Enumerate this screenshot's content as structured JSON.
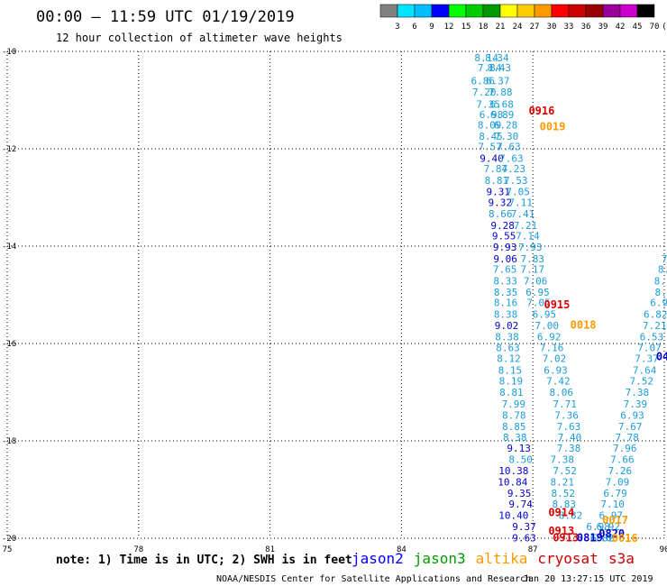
{
  "chart_data": {
    "type": "scatter",
    "title": "00:00 – 11:59 UTC 01/19/2019",
    "subtitle": "12 hour collection of altimeter wave heights",
    "x_range": [
      75,
      90
    ],
    "y_range": [
      -20,
      -10
    ],
    "x_ticks": [
      "75",
      "78",
      "81",
      "84",
      "87",
      "90"
    ],
    "y_ticks": [
      "-10",
      "-12",
      "-14",
      "-16",
      "-18",
      "-20"
    ],
    "grid": true,
    "colorbar": {
      "labels": [
        "3",
        "6",
        "9",
        "12",
        "15",
        "18",
        "21",
        "24",
        "27",
        "30",
        "33",
        "36",
        "39",
        "42",
        "45",
        "70",
        "(ft)"
      ],
      "colors": [
        "#808080",
        "#00e5ff",
        "#00bfff",
        "#0000ff",
        "#00ff00",
        "#00cc00",
        "#009900",
        "#ffff00",
        "#ffcc00",
        "#ff9900",
        "#ff0000",
        "#cc0000",
        "#990000",
        "#990099",
        "#cc00cc",
        "#000000"
      ]
    },
    "series": [
      {
        "name": "track-west",
        "points": [
          {
            "x": 85.94,
            "y": -10.13,
            "v": "8.14"
          },
          {
            "x": 86.01,
            "y": -10.33,
            "v": "7.84"
          },
          {
            "x": 85.86,
            "y": -10.6,
            "v": "6.86"
          },
          {
            "x": 85.89,
            "y": -10.83,
            "v": "7.20"
          },
          {
            "x": 85.98,
            "y": -11.08,
            "v": "7.35"
          },
          {
            "x": 86.05,
            "y": -11.3,
            "v": "6.98"
          },
          {
            "x": 86.01,
            "y": -11.51,
            "v": "8.09"
          },
          {
            "x": 86.04,
            "y": -11.74,
            "v": "8.45"
          },
          {
            "x": 86.02,
            "y": -11.95,
            "v": "7.57"
          },
          {
            "x": 86.06,
            "y": -12.19,
            "v": "9.40"
          },
          {
            "x": 86.15,
            "y": -12.41,
            "v": "7.84"
          },
          {
            "x": 86.17,
            "y": -12.65,
            "v": "8.81"
          },
          {
            "x": 86.21,
            "y": -12.88,
            "v": "9.31"
          },
          {
            "x": 86.25,
            "y": -13.1,
            "v": "9.32"
          },
          {
            "x": 86.26,
            "y": -13.33,
            "v": "8.66"
          },
          {
            "x": 86.31,
            "y": -13.57,
            "v": "9.28"
          },
          {
            "x": 86.34,
            "y": -13.79,
            "v": "9.55"
          },
          {
            "x": 86.36,
            "y": -14.02,
            "v": "9.93"
          },
          {
            "x": 86.37,
            "y": -14.26,
            "v": "9.06"
          },
          {
            "x": 86.36,
            "y": -14.47,
            "v": "7.65"
          },
          {
            "x": 86.37,
            "y": -14.71,
            "v": "8.33"
          },
          {
            "x": 86.38,
            "y": -14.94,
            "v": "8.35"
          },
          {
            "x": 86.38,
            "y": -15.16,
            "v": "8.16"
          },
          {
            "x": 86.38,
            "y": -15.4,
            "v": "8.38"
          },
          {
            "x": 86.4,
            "y": -15.63,
            "v": "9.02"
          },
          {
            "x": 86.41,
            "y": -15.86,
            "v": "8.38"
          },
          {
            "x": 86.43,
            "y": -16.08,
            "v": "8.63"
          },
          {
            "x": 86.45,
            "y": -16.31,
            "v": "8.12"
          },
          {
            "x": 86.48,
            "y": -16.55,
            "v": "8.15"
          },
          {
            "x": 86.5,
            "y": -16.77,
            "v": "8.19"
          },
          {
            "x": 86.51,
            "y": -17.0,
            "v": "8.81"
          },
          {
            "x": 86.56,
            "y": -17.24,
            "v": "7.99"
          },
          {
            "x": 86.57,
            "y": -17.47,
            "v": "8.78"
          },
          {
            "x": 86.57,
            "y": -17.7,
            "v": "8.85"
          },
          {
            "x": 86.59,
            "y": -17.93,
            "v": "8.38"
          },
          {
            "x": 86.68,
            "y": -18.15,
            "v": "9.13"
          },
          {
            "x": 86.72,
            "y": -18.38,
            "v": "8.50"
          },
          {
            "x": 86.56,
            "y": -18.61,
            "v": "10.38"
          },
          {
            "x": 86.54,
            "y": -18.84,
            "v": "10.84"
          },
          {
            "x": 86.69,
            "y": -19.07,
            "v": "9.35"
          },
          {
            "x": 86.72,
            "y": -19.3,
            "v": "9.74"
          },
          {
            "x": 86.56,
            "y": -19.53,
            "v": "10.40"
          },
          {
            "x": 86.8,
            "y": -19.76,
            "v": "9.37"
          },
          {
            "x": 86.8,
            "y": -19.99,
            "v": "9.63"
          }
        ]
      },
      {
        "name": "track-middle",
        "points": [
          {
            "x": 86.18,
            "y": -10.13,
            "v": "8.34"
          },
          {
            "x": 86.23,
            "y": -10.33,
            "v": "8.43"
          },
          {
            "x": 86.2,
            "y": -10.6,
            "v": "6.37"
          },
          {
            "x": 86.26,
            "y": -10.83,
            "v": "7.88"
          },
          {
            "x": 86.29,
            "y": -11.08,
            "v": "6.68"
          },
          {
            "x": 86.3,
            "y": -11.3,
            "v": "6.89"
          },
          {
            "x": 86.38,
            "y": -11.51,
            "v": "6.28"
          },
          {
            "x": 86.4,
            "y": -11.74,
            "v": "7.30"
          },
          {
            "x": 86.45,
            "y": -11.95,
            "v": "7.63"
          },
          {
            "x": 86.51,
            "y": -12.19,
            "v": "7.63"
          },
          {
            "x": 86.56,
            "y": -12.41,
            "v": "7.23"
          },
          {
            "x": 86.61,
            "y": -12.65,
            "v": "7.53"
          },
          {
            "x": 86.66,
            "y": -12.88,
            "v": "7.05"
          },
          {
            "x": 86.72,
            "y": -13.1,
            "v": "7.11"
          },
          {
            "x": 86.77,
            "y": -13.33,
            "v": "7.41"
          },
          {
            "x": 86.83,
            "y": -13.57,
            "v": "7.21"
          },
          {
            "x": 86.88,
            "y": -13.79,
            "v": "7.14"
          },
          {
            "x": 86.94,
            "y": -14.02,
            "v": "7.93"
          },
          {
            "x": 86.99,
            "y": -14.26,
            "v": "7.83"
          },
          {
            "x": 86.99,
            "y": -14.47,
            "v": "7.17"
          },
          {
            "x": 87.06,
            "y": -14.71,
            "v": "7.06"
          },
          {
            "x": 87.11,
            "y": -14.94,
            "v": "6.95"
          },
          {
            "x": 87.13,
            "y": -15.16,
            "v": "7.05"
          },
          {
            "x": 87.26,
            "y": -15.4,
            "v": "6.95"
          },
          {
            "x": 87.32,
            "y": -15.63,
            "v": "7.00"
          },
          {
            "x": 87.37,
            "y": -15.86,
            "v": "6.92"
          },
          {
            "x": 87.43,
            "y": -16.08,
            "v": "7.16"
          },
          {
            "x": 87.49,
            "y": -16.31,
            "v": "7.02"
          },
          {
            "x": 87.52,
            "y": -16.55,
            "v": "6.93"
          },
          {
            "x": 87.58,
            "y": -16.77,
            "v": "7.42"
          },
          {
            "x": 87.65,
            "y": -17.0,
            "v": "8.06"
          },
          {
            "x": 87.73,
            "y": -17.24,
            "v": "7.71"
          },
          {
            "x": 87.77,
            "y": -17.47,
            "v": "7.36"
          },
          {
            "x": 87.82,
            "y": -17.7,
            "v": "7.63"
          },
          {
            "x": 87.84,
            "y": -17.93,
            "v": "7.40"
          },
          {
            "x": 87.82,
            "y": -18.15,
            "v": "7.38"
          },
          {
            "x": 87.67,
            "y": -18.38,
            "v": "7.38"
          },
          {
            "x": 87.73,
            "y": -18.61,
            "v": "7.52"
          },
          {
            "x": 87.67,
            "y": -18.84,
            "v": "8.21"
          },
          {
            "x": 87.69,
            "y": -19.07,
            "v": "8.52"
          },
          {
            "x": 87.71,
            "y": -19.3,
            "v": "8.83"
          },
          {
            "x": 87.86,
            "y": -19.53,
            "v": "8.82"
          }
        ]
      },
      {
        "name": "track-east",
        "points": [
          {
            "x": 90.0,
            "y": -14.26,
            "v": "7"
          },
          {
            "x": 89.99,
            "y": -14.47,
            "v": "8."
          },
          {
            "x": 89.97,
            "y": -14.71,
            "v": "8.1"
          },
          {
            "x": 89.92,
            "y": -14.94,
            "v": "8."
          },
          {
            "x": 89.88,
            "y": -15.16,
            "v": "6.9"
          },
          {
            "x": 89.8,
            "y": -15.4,
            "v": "6.82"
          },
          {
            "x": 89.78,
            "y": -15.63,
            "v": "7.21"
          },
          {
            "x": 89.71,
            "y": -15.86,
            "v": "6.53"
          },
          {
            "x": 89.66,
            "y": -16.08,
            "v": "7.07"
          },
          {
            "x": 89.6,
            "y": -16.31,
            "v": "7.37"
          },
          {
            "x": 89.55,
            "y": -16.55,
            "v": "7.64"
          },
          {
            "x": 89.48,
            "y": -16.77,
            "v": "7.52"
          },
          {
            "x": 89.38,
            "y": -17.0,
            "v": "7.38"
          },
          {
            "x": 89.34,
            "y": -17.24,
            "v": "7.39"
          },
          {
            "x": 89.27,
            "y": -17.47,
            "v": "6.93"
          },
          {
            "x": 89.22,
            "y": -17.7,
            "v": "7.67"
          },
          {
            "x": 89.15,
            "y": -17.93,
            "v": "7.78"
          },
          {
            "x": 89.1,
            "y": -18.15,
            "v": "7.96"
          },
          {
            "x": 89.04,
            "y": -18.38,
            "v": "7.66"
          },
          {
            "x": 88.99,
            "y": -18.61,
            "v": "7.26"
          },
          {
            "x": 88.93,
            "y": -18.84,
            "v": "7.09"
          },
          {
            "x": 88.88,
            "y": -19.07,
            "v": "6.79"
          },
          {
            "x": 88.82,
            "y": -19.3,
            "v": "7.10"
          },
          {
            "x": 88.78,
            "y": -19.53,
            "v": "6.97"
          },
          {
            "x": 88.72,
            "y": -19.76,
            "v": "6.92"
          },
          {
            "x": 88.67,
            "y": -19.99,
            "v": "7.03"
          },
          {
            "x": 88.58,
            "y": -19.99,
            "v": "6.82"
          },
          {
            "x": 88.49,
            "y": -19.76,
            "v": "6.98"
          }
        ]
      }
    ],
    "pass_labels": [
      {
        "text": "0916",
        "x": 87.2,
        "y": -11.22,
        "mission": "cryosat"
      },
      {
        "text": "0019",
        "x": 87.45,
        "y": -11.55,
        "mission": "altika"
      },
      {
        "text": "0915",
        "x": 87.55,
        "y": -15.2,
        "mission": "cryosat"
      },
      {
        "text": "0018",
        "x": 88.15,
        "y": -15.62,
        "mission": "altika"
      },
      {
        "text": "04",
        "x": 89.96,
        "y": -16.27,
        "mission": "jason2"
      },
      {
        "text": "0914",
        "x": 87.65,
        "y": -19.47,
        "mission": "cryosat"
      },
      {
        "text": "0017",
        "x": 88.88,
        "y": -19.63,
        "mission": "altika"
      },
      {
        "text": "0913",
        "x": 87.65,
        "y": -19.85,
        "mission": "cryosat"
      },
      {
        "text": "0820",
        "x": 88.8,
        "y": -19.91,
        "mission": "jason2"
      },
      {
        "text": "0913",
        "x": 87.75,
        "y": -19.99,
        "mission": "cryosat"
      },
      {
        "text": "0819",
        "x": 88.3,
        "y": -19.99,
        "mission": "jason2"
      },
      {
        "text": "0016",
        "x": 89.1,
        "y": -20.0,
        "mission": "altika"
      }
    ]
  },
  "footer": {
    "note": "note: 1) Time is in UTC; 2) SWH is in feet",
    "legend": [
      {
        "label": "jason2",
        "color": "#0000ff"
      },
      {
        "label": "jason3",
        "color": "#009900"
      },
      {
        "label": "altika",
        "color": "#ff9900"
      },
      {
        "label": "cryosat",
        "color": "#cc0000"
      },
      {
        "label": "s3a",
        "color": "#cc0000"
      }
    ],
    "credit": "NOAA/NESDIS Center for Satellite Applications and Research",
    "timestamp": "Jan 20 13:27:15 UTC 2019"
  },
  "colors": {
    "jason2": "#0000cc",
    "altika": "#ff9900",
    "cryosat": "#dd0000"
  }
}
